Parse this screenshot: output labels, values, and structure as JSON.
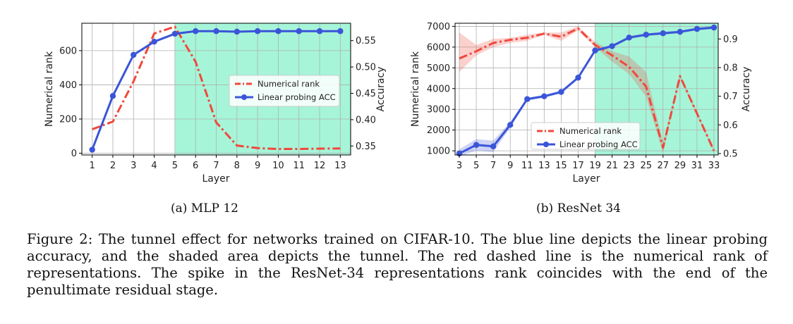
{
  "chart_data": [
    {
      "type": "line",
      "x": [
        1,
        2,
        3,
        4,
        5,
        6,
        7,
        8,
        9,
        10,
        11,
        12,
        13
      ],
      "xlabel": "Layer",
      "ylabel": "Numerical rank",
      "y2label": "Accuracy",
      "ylim": [
        -10,
        760
      ],
      "y2lim": [
        0.333,
        0.583
      ],
      "yticks": [
        0,
        200,
        400,
        600
      ],
      "y2ticks": [
        0.35,
        0.4,
        0.45,
        0.5,
        0.55
      ],
      "grid": true,
      "legend_position": "center-right",
      "tunnel_range": [
        5,
        13.5
      ],
      "series": [
        {
          "name": "Numerical rank",
          "axis": "left",
          "style": "dashdot",
          "color": "#f0483c",
          "values": [
            140,
            185,
            420,
            700,
            740,
            535,
            180,
            45,
            30,
            25,
            25,
            27,
            28
          ]
        },
        {
          "name": "Linear probing ACC",
          "axis": "right",
          "style": "solid-marker",
          "color": "#3a55d8",
          "values": [
            0.343,
            0.445,
            0.523,
            0.548,
            0.563,
            0.568,
            0.568,
            0.567,
            0.568,
            0.568,
            0.568,
            0.568,
            0.568
          ]
        }
      ]
    },
    {
      "type": "line",
      "x": [
        3,
        5,
        7,
        9,
        11,
        13,
        15,
        17,
        19,
        21,
        23,
        25,
        27,
        29,
        31,
        33
      ],
      "xlabel": "Layer",
      "ylabel": "Numerical rank",
      "y2label": "Accuracy",
      "ylim": [
        800,
        7150
      ],
      "y2lim": [
        0.495,
        0.955
      ],
      "yticks": [
        1000,
        2000,
        3000,
        4000,
        5000,
        6000,
        7000
      ],
      "y2ticks": [
        0.5,
        0.6,
        0.7,
        0.8,
        0.9
      ],
      "grid": true,
      "legend_position": "lower-center",
      "tunnel_range": [
        19,
        33.5
      ],
      "series": [
        {
          "name": "Numerical rank",
          "axis": "left",
          "style": "dashdot",
          "color": "#f0483c",
          "values": [
            5450,
            5800,
            6200,
            6350,
            6450,
            6650,
            6500,
            6900,
            6100,
            5600,
            5050,
            4100,
            1150,
            4600,
            2800,
            1000
          ],
          "band_low": [
            4800,
            5600,
            6000,
            6200,
            6300,
            6600,
            6300,
            6800,
            6000,
            5300,
            4700,
            3600,
            900,
            4500,
            2700,
            950
          ],
          "band_high": [
            6700,
            6100,
            6400,
            6450,
            6600,
            6700,
            6700,
            7000,
            6250,
            5800,
            5550,
            4800,
            1400,
            4700,
            2900,
            1050
          ]
        },
        {
          "name": "Linear probing ACC",
          "axis": "right",
          "style": "solid-marker",
          "color": "#3a55d8",
          "values": [
            0.5,
            0.53,
            0.525,
            0.6,
            0.69,
            0.7,
            0.715,
            0.765,
            0.86,
            0.875,
            0.905,
            0.915,
            0.92,
            0.925,
            0.935,
            0.94
          ],
          "band_low": [
            0.49,
            0.51,
            0.505,
            0.59,
            0.685,
            0.695,
            0.71,
            0.76,
            0.855,
            0.87,
            0.9,
            0.91,
            0.915,
            0.92,
            0.93,
            0.935
          ],
          "band_high": [
            0.515,
            0.55,
            0.545,
            0.61,
            0.695,
            0.705,
            0.72,
            0.77,
            0.865,
            0.88,
            0.91,
            0.92,
            0.925,
            0.93,
            0.94,
            0.945
          ]
        }
      ]
    }
  ],
  "subcaptions": [
    "(a) MLP 12",
    "(b) ResNet 34"
  ],
  "caption": "Figure 2: The tunnel effect for networks trained on CIFAR-10. The blue line depicts the linear probing accuracy, and the shaded area depicts the tunnel. The red dashed line is the numerical rank of representations. The spike in the ResNet-34 representations rank coincides with the end of the penultimate residual stage.",
  "colors": {
    "tunnel": "#a6f5d8",
    "rank": "#f0483c",
    "acc": "#3a55d8",
    "grid": "#b0b0b0"
  }
}
